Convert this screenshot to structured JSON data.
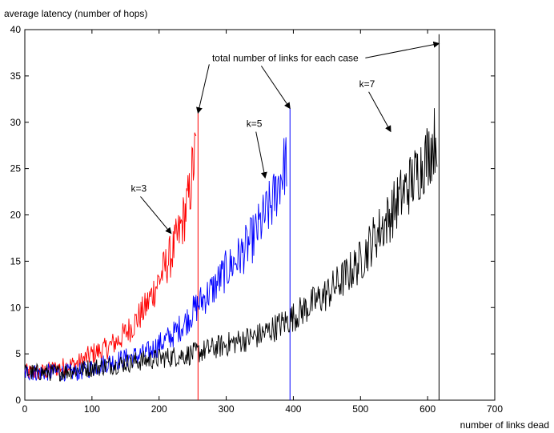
{
  "chart_data": {
    "type": "line",
    "title": "",
    "ylabel": "average latency (number of hops)",
    "xlabel": "number of links dead",
    "xlim": [
      0,
      700
    ],
    "ylim": [
      0,
      40
    ],
    "xticks": [
      0,
      100,
      200,
      300,
      400,
      500,
      600,
      700
    ],
    "yticks": [
      0,
      5,
      10,
      15,
      20,
      25,
      30,
      35,
      40
    ],
    "grid": false,
    "colors": {
      "k3": "#ff0000",
      "k5": "#0000ff",
      "k7": "#000000",
      "axis": "#000000"
    },
    "series": [
      {
        "name": "k=3",
        "color": "#ff0000",
        "total_links": 258,
        "x": [
          0,
          25,
          50,
          80,
          100,
          120,
          140,
          160,
          180,
          190,
          200,
          210,
          220,
          230,
          238,
          245,
          250,
          255
        ],
        "y": [
          3,
          3,
          3.5,
          4,
          5,
          5.5,
          6.5,
          8,
          10,
          11.5,
          13,
          14.5,
          16,
          18,
          20,
          22,
          25,
          27
        ],
        "vertical_line_top": 31
      },
      {
        "name": "k=5",
        "color": "#0000ff",
        "total_links": 395,
        "x": [
          0,
          40,
          80,
          100,
          120,
          150,
          180,
          200,
          220,
          240,
          260,
          280,
          300,
          320,
          340,
          355,
          370,
          380,
          390
        ],
        "y": [
          3,
          3,
          3,
          3.5,
          4,
          4.5,
          5,
          6,
          7,
          8.5,
          10.5,
          12,
          14,
          15.5,
          17.5,
          19.5,
          21.5,
          24,
          26
        ],
        "vertical_line_top": 31.5
      },
      {
        "name": "k=7",
        "color": "#000000",
        "total_links": 617,
        "x": [
          0,
          50,
          100,
          150,
          200,
          250,
          300,
          350,
          390,
          420,
          450,
          480,
          500,
          520,
          540,
          560,
          580,
          600,
          610,
          614
        ],
        "y": [
          3,
          3,
          3.5,
          4,
          4.5,
          5,
          6,
          7,
          8.5,
          10,
          11.5,
          13.5,
          15,
          17.5,
          19.5,
          22,
          24,
          26.5,
          28,
          29
        ],
        "vertical_line_top": 39.5
      }
    ],
    "annotations": [
      {
        "text": "k=3",
        "text_at": [
          158,
          22.5
        ],
        "arrow_to": [
          218,
          18
        ]
      },
      {
        "text": "k=5",
        "text_at": [
          330,
          29.5
        ],
        "arrow_to": [
          358,
          24
        ]
      },
      {
        "text": "k=7",
        "text_at": [
          498,
          33.8
        ],
        "arrow_to": [
          545,
          29
        ]
      },
      {
        "text": "total number of links for each case",
        "text_at": [
          388,
          36.6
        ],
        "arrow_to_list": [
          [
            258,
            31
          ],
          [
            395,
            31.5
          ],
          [
            617,
            38.5
          ]
        ]
      }
    ]
  }
}
